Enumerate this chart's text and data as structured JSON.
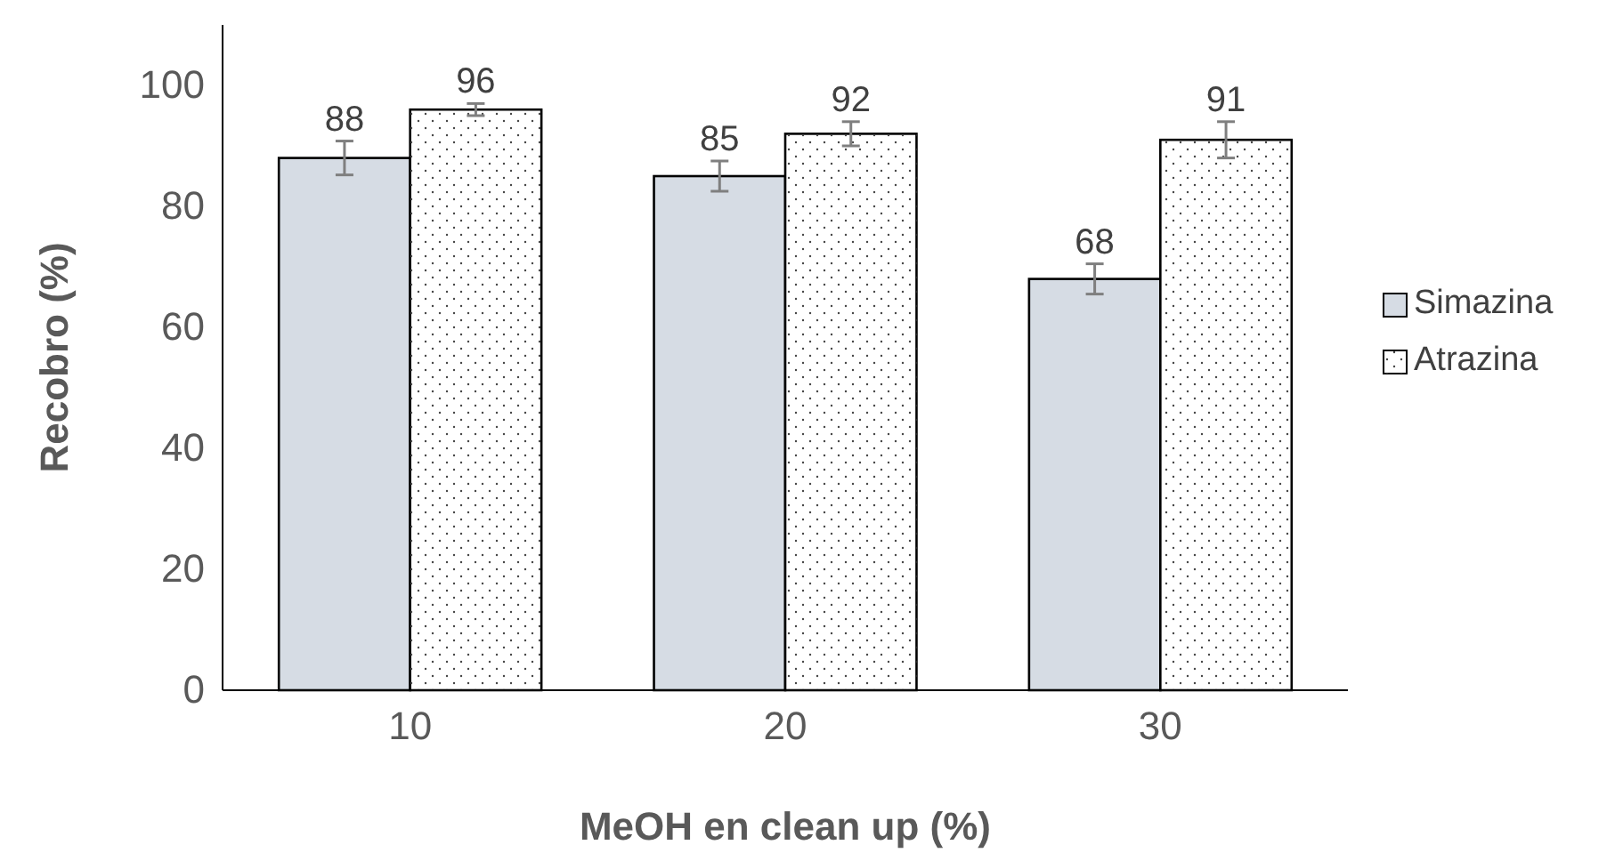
{
  "chart_data": {
    "type": "bar",
    "xlabel": "MeOH en clean up (%)",
    "ylabel": "Recobro (%)",
    "categories": [
      "10",
      "20",
      "30"
    ],
    "series": [
      {
        "name": "Simazina",
        "color": "#d6dce4",
        "values": [
          88,
          85,
          68
        ],
        "errors": [
          2.8,
          2.5,
          2.5
        ]
      },
      {
        "name": "Atrazina",
        "color": "#ffffff",
        "values": [
          96,
          92,
          91
        ],
        "errors": [
          1,
          2,
          3
        ]
      }
    ],
    "ylim": [
      0,
      110
    ],
    "yticks": [
      0,
      20,
      40,
      60,
      80,
      100
    ],
    "data_labels": true,
    "legend": "right",
    "grid": false
  }
}
